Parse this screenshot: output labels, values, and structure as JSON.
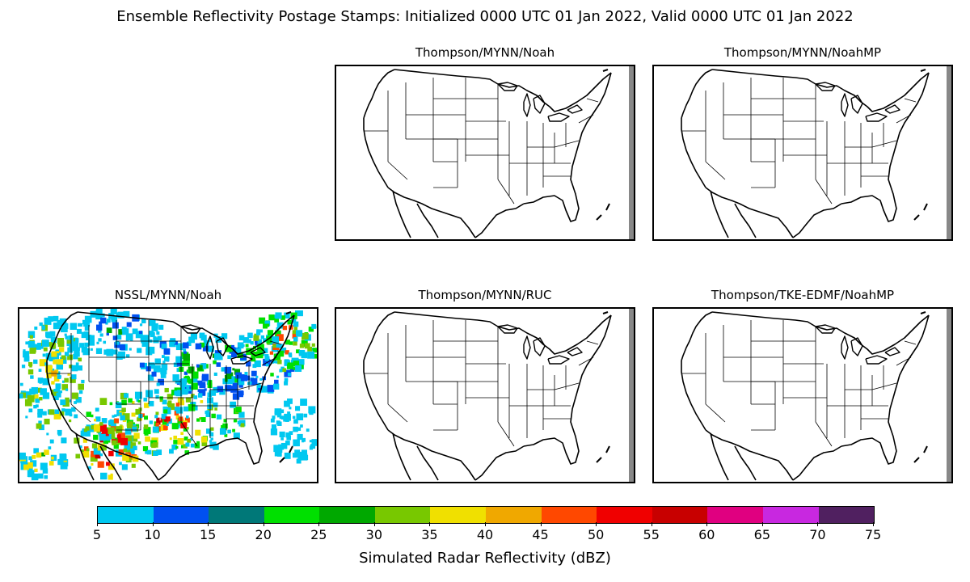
{
  "title": "Ensemble Reflectivity Postage Stamps: Initialized 0000 UTC 01 Jan 2022, Valid 0000 UTC 01 Jan 2022",
  "panels": [
    {
      "name": "Thompson/MYNN/Noah",
      "has_reflectivity": false
    },
    {
      "name": "Thompson/MYNN/NoahMP",
      "has_reflectivity": false
    },
    {
      "name": "NSSL/MYNN/Noah",
      "has_reflectivity": true
    },
    {
      "name": "Thompson/MYNN/RUC",
      "has_reflectivity": false
    },
    {
      "name": "Thompson/TKE-EDMF/NoahMP",
      "has_reflectivity": false
    }
  ],
  "colorbar": {
    "label": "Simulated Radar Reflectivity (dBZ)",
    "ticks": [
      "5",
      "10",
      "15",
      "20",
      "25",
      "30",
      "35",
      "40",
      "45",
      "50",
      "55",
      "60",
      "65",
      "70",
      "75"
    ],
    "colors": [
      "#00c8f0",
      "#0050f0",
      "#007878",
      "#00e000",
      "#00a800",
      "#78c800",
      "#f0e000",
      "#f0a800",
      "#ff4800",
      "#f00000",
      "#c80000",
      "#e00080",
      "#c828e0",
      "#502060"
    ]
  }
}
